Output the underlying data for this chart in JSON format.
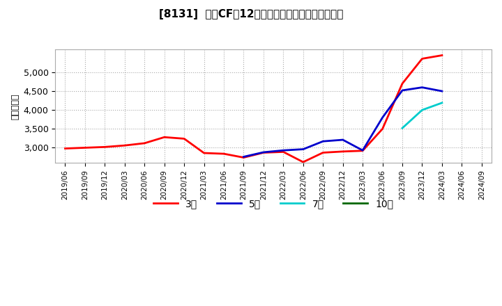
{
  "title": "[8131]  営業CFの12か月移動合計の標準偏差の推移",
  "ylabel": "（百万円）",
  "background_color": "#ffffff",
  "plot_bg_color": "#ffffff",
  "grid_color": "#aaaaaa",
  "ylim": [
    2600,
    5600
  ],
  "yticks": [
    3000,
    3500,
    4000,
    4500,
    5000
  ],
  "series": {
    "3年": {
      "color": "#ff0000",
      "data": [
        [
          "2019/06",
          2980
        ],
        [
          "2019/09",
          3000
        ],
        [
          "2019/12",
          3020
        ],
        [
          "2020/03",
          3060
        ],
        [
          "2020/06",
          3120
        ],
        [
          "2020/09",
          3280
        ],
        [
          "2020/12",
          3240
        ],
        [
          "2021/03",
          2860
        ],
        [
          "2021/06",
          2840
        ],
        [
          "2021/09",
          2740
        ],
        [
          "2021/12",
          2870
        ],
        [
          "2022/03",
          2890
        ],
        [
          "2022/06",
          2620
        ],
        [
          "2022/09",
          2870
        ],
        [
          "2022/12",
          2900
        ],
        [
          "2023/03",
          2920
        ],
        [
          "2023/06",
          3500
        ],
        [
          "2023/09",
          4700
        ],
        [
          "2023/12",
          5360
        ],
        [
          "2024/03",
          5450
        ],
        [
          "2024/06",
          null
        ],
        [
          "2024/09",
          null
        ]
      ]
    },
    "5年": {
      "color": "#0000cc",
      "data": [
        [
          "2019/06",
          null
        ],
        [
          "2019/09",
          null
        ],
        [
          "2019/12",
          null
        ],
        [
          "2020/03",
          null
        ],
        [
          "2020/06",
          null
        ],
        [
          "2020/09",
          null
        ],
        [
          "2020/12",
          null
        ],
        [
          "2021/03",
          null
        ],
        [
          "2021/06",
          null
        ],
        [
          "2021/09",
          2760
        ],
        [
          "2021/12",
          2880
        ],
        [
          "2022/03",
          2930
        ],
        [
          "2022/06",
          2960
        ],
        [
          "2022/09",
          3170
        ],
        [
          "2022/12",
          3210
        ],
        [
          "2023/03",
          2930
        ],
        [
          "2023/06",
          3800
        ],
        [
          "2023/09",
          4520
        ],
        [
          "2023/12",
          4600
        ],
        [
          "2024/03",
          4500
        ],
        [
          "2024/06",
          null
        ],
        [
          "2024/09",
          null
        ]
      ]
    },
    "7年": {
      "color": "#00cccc",
      "data": [
        [
          "2019/06",
          null
        ],
        [
          "2019/09",
          null
        ],
        [
          "2019/12",
          null
        ],
        [
          "2020/03",
          null
        ],
        [
          "2020/06",
          null
        ],
        [
          "2020/09",
          null
        ],
        [
          "2020/12",
          null
        ],
        [
          "2021/03",
          null
        ],
        [
          "2021/06",
          null
        ],
        [
          "2021/09",
          null
        ],
        [
          "2021/12",
          null
        ],
        [
          "2022/03",
          null
        ],
        [
          "2022/06",
          null
        ],
        [
          "2022/09",
          null
        ],
        [
          "2022/12",
          null
        ],
        [
          "2023/03",
          null
        ],
        [
          "2023/06",
          null
        ],
        [
          "2023/09",
          3520
        ],
        [
          "2023/12",
          4000
        ],
        [
          "2024/03",
          4190
        ],
        [
          "2024/06",
          null
        ],
        [
          "2024/09",
          null
        ]
      ]
    },
    "10年": {
      "color": "#006600",
      "data": [
        [
          "2019/06",
          null
        ],
        [
          "2019/09",
          null
        ],
        [
          "2019/12",
          null
        ],
        [
          "2020/03",
          null
        ],
        [
          "2020/06",
          null
        ],
        [
          "2020/09",
          null
        ],
        [
          "2020/12",
          null
        ],
        [
          "2021/03",
          null
        ],
        [
          "2021/06",
          null
        ],
        [
          "2021/09",
          null
        ],
        [
          "2021/12",
          null
        ],
        [
          "2022/03",
          null
        ],
        [
          "2022/06",
          null
        ],
        [
          "2022/09",
          null
        ],
        [
          "2022/12",
          null
        ],
        [
          "2023/03",
          null
        ],
        [
          "2023/06",
          null
        ],
        [
          "2023/09",
          null
        ],
        [
          "2023/12",
          null
        ],
        [
          "2024/03",
          null
        ],
        [
          "2024/06",
          null
        ],
        [
          "2024/09",
          null
        ]
      ]
    }
  },
  "xtick_labels": [
    "2019/06",
    "2019/09",
    "2019/12",
    "2020/03",
    "2020/06",
    "2020/09",
    "2020/12",
    "2021/03",
    "2021/06",
    "2021/09",
    "2021/12",
    "2022/03",
    "2022/06",
    "2022/09",
    "2022/12",
    "2023/03",
    "2023/06",
    "2023/09",
    "2023/12",
    "2024/03",
    "2024/06",
    "2024/09"
  ],
  "legend_labels": [
    "3年",
    "5年",
    "7年",
    "10年"
  ],
  "legend_colors": [
    "#ff0000",
    "#0000cc",
    "#00cccc",
    "#006600"
  ]
}
